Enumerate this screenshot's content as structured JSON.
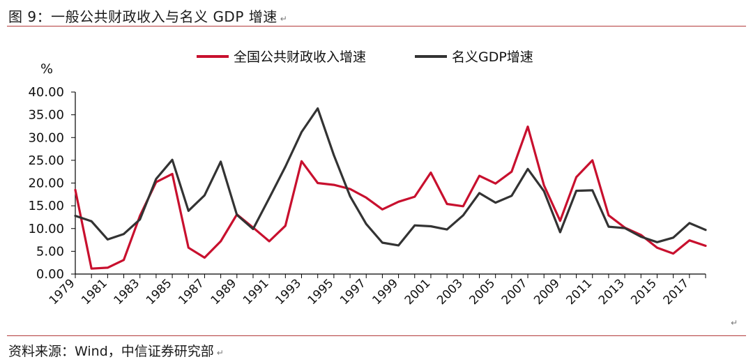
{
  "header": {
    "title": "图 9：一般公共财政收入与名义 GDP 增速"
  },
  "footer": {
    "source": "资料来源：Wind，中信证券研究部"
  },
  "marks": {
    "paragraph": "↵"
  },
  "chart_data": {
    "type": "line",
    "unit_label": "%",
    "x": [
      1979,
      1980,
      1981,
      1982,
      1983,
      1984,
      1985,
      1986,
      1987,
      1988,
      1989,
      1990,
      1991,
      1992,
      1993,
      1994,
      1995,
      1996,
      1997,
      1998,
      1999,
      2000,
      2001,
      2002,
      2003,
      2004,
      2005,
      2006,
      2007,
      2008,
      2009,
      2010,
      2011,
      2012,
      2013,
      2014,
      2015,
      2016,
      2017,
      2018
    ],
    "x_tick_labels": [
      "1979",
      "1981",
      "1983",
      "1985",
      "1987",
      "1989",
      "1991",
      "1993",
      "1995",
      "1997",
      "1999",
      "2001",
      "2003",
      "2005",
      "2007",
      "2009",
      "2011",
      "2013",
      "2015",
      "2017"
    ],
    "y_tick_labels": [
      "0.00",
      "5.00",
      "10.00",
      "15.00",
      "20.00",
      "25.00",
      "30.00",
      "35.00",
      "40.00"
    ],
    "ylim": [
      0,
      40
    ],
    "legend_position": "top",
    "series": [
      {
        "name": "全国公共财政收入增速",
        "color": "#c8102e",
        "values": [
          18.5,
          1.2,
          1.4,
          3.1,
          12.8,
          20.2,
          22.0,
          5.8,
          3.6,
          7.2,
          13.1,
          10.2,
          7.2,
          10.6,
          24.8,
          20.0,
          19.6,
          18.7,
          16.8,
          14.2,
          15.9,
          17.0,
          22.3,
          15.4,
          14.9,
          21.6,
          19.9,
          22.5,
          32.4,
          19.5,
          11.7,
          21.3,
          25.0,
          12.9,
          10.2,
          8.6,
          5.8,
          4.5,
          7.4,
          6.2
        ]
      },
      {
        "name": "名义GDP增速",
        "color": "#333333",
        "values": [
          12.8,
          11.6,
          7.6,
          8.8,
          12.0,
          20.9,
          25.1,
          13.9,
          17.3,
          24.7,
          13.0,
          9.9,
          16.7,
          23.6,
          31.2,
          36.4,
          26.1,
          17.1,
          11.0,
          6.9,
          6.3,
          10.7,
          10.5,
          9.8,
          12.9,
          17.8,
          15.7,
          17.2,
          23.1,
          18.2,
          9.2,
          18.3,
          18.4,
          10.4,
          10.1,
          8.2,
          7.0,
          8.0,
          11.2,
          9.7
        ]
      }
    ]
  }
}
